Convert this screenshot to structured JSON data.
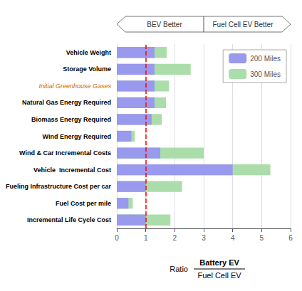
{
  "chart_data": {
    "type": "bar",
    "orientation": "horizontal",
    "categories": [
      "Incremental Life Cycle Cost",
      "Fuel Cost per mile",
      "Fueling Infrastructure Cost per car",
      "Vehicle  Incremental Cost",
      "Wind & Car Incremental Costs",
      "Wind Energy Required",
      "Biomass Energy Required",
      "Natural Gas Energy Required",
      "Initial Greenhouse Gases",
      "Storage Volume",
      "Vehicle Weight"
    ],
    "series": [
      {
        "name": "200 Miles",
        "color": "#9999ee",
        "values": [
          1.0,
          0.4,
          1.0,
          4.0,
          1.5,
          0.5,
          1.2,
          1.3,
          1.3,
          1.3,
          1.3
        ]
      },
      {
        "name": "300 Miles",
        "color": "#aaddaa",
        "values": [
          1.85,
          0.55,
          2.25,
          5.3,
          3.0,
          0.62,
          1.55,
          1.7,
          1.8,
          2.55,
          1.72
        ]
      }
    ],
    "xlim": [
      0,
      6
    ],
    "xticks": [
      0,
      1,
      2,
      3,
      4,
      5,
      6
    ],
    "xlabel": {
      "text": "Ratio",
      "numerator": "Battery EV",
      "denominator": "Fuel Cell EV"
    },
    "annotations": [
      "BEV Better",
      "Fuel Cell EV Better"
    ],
    "reference_lines": [
      {
        "x": 1.0,
        "color": "red",
        "line_style": "dashed"
      }
    ],
    "highlight_label": {
      "category": "Initial Greenhouse Gases",
      "color": "#cc6600"
    },
    "grid": true,
    "legend": "upper right"
  }
}
